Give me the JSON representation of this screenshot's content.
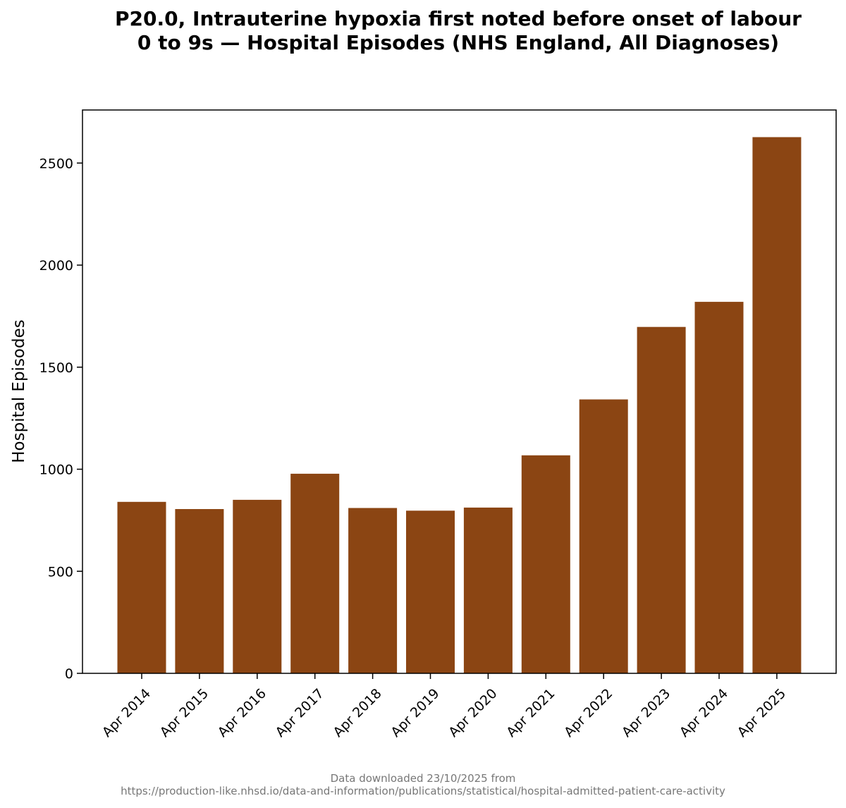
{
  "chart_data": {
    "type": "bar",
    "title_lines": [
      "P20.0, Intrauterine hypoxia first noted before onset of labour",
      "0 to 9s — Hospital Episodes (NHS England, All Diagnoses)"
    ],
    "xlabel": "",
    "ylabel": "Hospital Episodes",
    "categories": [
      "Apr 2014",
      "Apr 2015",
      "Apr 2016",
      "Apr 2017",
      "Apr 2018",
      "Apr 2019",
      "Apr 2020",
      "Apr 2021",
      "Apr 2022",
      "Apr 2023",
      "Apr 2024",
      "Apr 2025"
    ],
    "values": [
      840,
      805,
      850,
      978,
      810,
      797,
      812,
      1068,
      1342,
      1697,
      1820,
      2627
    ],
    "yticks": [
      0,
      500,
      1000,
      1500,
      2000,
      2500
    ],
    "ylim": [
      0,
      2760
    ],
    "bar_color": "#8b4513",
    "grid": false,
    "legend": "none"
  },
  "footer": {
    "line1": "Data downloaded 23/10/2025 from",
    "line2": "https://production-like.nhsd.io/data-and-information/publications/statistical/hospital-admitted-patient-care-activity"
  }
}
